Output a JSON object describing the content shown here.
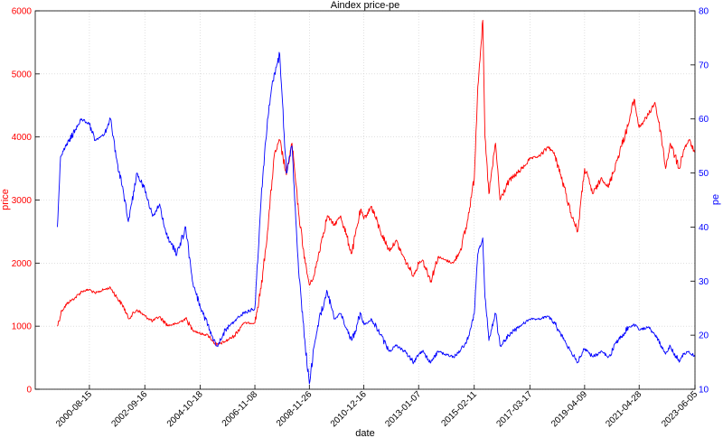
{
  "chart_data": {
    "type": "line",
    "title": "Aindex price-pe",
    "xlabel": "date",
    "ylabel_left": "price",
    "ylabel_right": "pe",
    "xlim": [
      "1998-08-01",
      "2023-06-05"
    ],
    "ylim_left": [
      0,
      6000
    ],
    "ylim_right": [
      10,
      80
    ],
    "x_ticks": [
      "2000-08-15",
      "2002-09-16",
      "2004-10-18",
      "2006-11-08",
      "2008-11-26",
      "2010-12-16",
      "2013-01-07",
      "2015-02-11",
      "2017-03-17",
      "2019-04-09",
      "2021-04-28",
      "2023-06-05"
    ],
    "y_ticks_left": [
      "0",
      "1000",
      "2000",
      "3000",
      "4000",
      "5000",
      "6000"
    ],
    "y_ticks_right": [
      "10",
      "20",
      "30",
      "40",
      "50",
      "60",
      "70",
      "80"
    ],
    "grid": true,
    "colors": {
      "price": "#ff0000",
      "pe": "#0000ff",
      "grid": "#cccccc"
    },
    "series": [
      {
        "axis": "left",
        "color": "#ff0000",
        "points": [
          [
            "1999-06-01",
            1000
          ],
          [
            "1999-08-01",
            1250
          ],
          [
            "1999-11-01",
            1380
          ],
          [
            "2000-02-01",
            1450
          ],
          [
            "2000-05-01",
            1550
          ],
          [
            "2000-08-15",
            1580
          ],
          [
            "2000-11-01",
            1520
          ],
          [
            "2001-03-01",
            1580
          ],
          [
            "2001-06-01",
            1610
          ],
          [
            "2001-09-01",
            1450
          ],
          [
            "2001-12-01",
            1300
          ],
          [
            "2002-02-01",
            1120
          ],
          [
            "2002-06-01",
            1260
          ],
          [
            "2002-09-16",
            1160
          ],
          [
            "2003-01-01",
            1080
          ],
          [
            "2003-04-01",
            1150
          ],
          [
            "2003-08-01",
            1010
          ],
          [
            "2003-12-01",
            1040
          ],
          [
            "2004-04-01",
            1120
          ],
          [
            "2004-07-01",
            950
          ],
          [
            "2004-10-18",
            880
          ],
          [
            "2005-02-01",
            860
          ],
          [
            "2005-06-01",
            700
          ],
          [
            "2005-10-01",
            760
          ],
          [
            "2006-02-01",
            850
          ],
          [
            "2006-06-01",
            1050
          ],
          [
            "2006-11-08",
            1050
          ],
          [
            "2007-02-01",
            1600
          ],
          [
            "2007-05-01",
            2500
          ],
          [
            "2007-08-01",
            3700
          ],
          [
            "2007-10-15",
            3950
          ],
          [
            "2008-01-15",
            3400
          ],
          [
            "2008-04-01",
            3900
          ],
          [
            "2008-07-01",
            2800
          ],
          [
            "2008-10-01",
            2000
          ],
          [
            "2008-11-26",
            1650
          ],
          [
            "2009-02-01",
            1800
          ],
          [
            "2009-05-01",
            2300
          ],
          [
            "2009-08-01",
            2750
          ],
          [
            "2009-11-01",
            2600
          ],
          [
            "2010-02-01",
            2750
          ],
          [
            "2010-07-01",
            2150
          ],
          [
            "2010-11-01",
            2850
          ],
          [
            "2010-12-16",
            2700
          ],
          [
            "2011-04-01",
            2900
          ],
          [
            "2011-08-01",
            2500
          ],
          [
            "2011-12-01",
            2200
          ],
          [
            "2012-03-01",
            2350
          ],
          [
            "2012-07-01",
            2050
          ],
          [
            "2012-11-01",
            1800
          ],
          [
            "2013-01-07",
            2000
          ],
          [
            "2013-03-01",
            2050
          ],
          [
            "2013-06-25",
            1720
          ],
          [
            "2013-10-01",
            2100
          ],
          [
            "2014-01-01",
            2050
          ],
          [
            "2014-05-01",
            2000
          ],
          [
            "2014-08-01",
            2200
          ],
          [
            "2014-11-01",
            2600
          ],
          [
            "2015-02-11",
            3350
          ],
          [
            "2015-04-01",
            4800
          ],
          [
            "2015-06-08",
            5850
          ],
          [
            "2015-07-08",
            4000
          ],
          [
            "2015-09-01",
            3100
          ],
          [
            "2015-12-01",
            3900
          ],
          [
            "2016-02-01",
            3000
          ],
          [
            "2016-06-01",
            3300
          ],
          [
            "2016-12-01",
            3500
          ],
          [
            "2017-03-17",
            3650
          ],
          [
            "2017-08-01",
            3700
          ],
          [
            "2017-12-01",
            3850
          ],
          [
            "2018-03-01",
            3700
          ],
          [
            "2018-07-01",
            3200
          ],
          [
            "2018-10-01",
            2800
          ],
          [
            "2019-01-04",
            2500
          ],
          [
            "2019-04-09",
            3500
          ],
          [
            "2019-08-01",
            3100
          ],
          [
            "2019-12-01",
            3350
          ],
          [
            "2020-03-01",
            3200
          ],
          [
            "2020-07-15",
            3700
          ],
          [
            "2020-12-01",
            4200
          ],
          [
            "2021-02-18",
            4600
          ],
          [
            "2021-04-28",
            4150
          ],
          [
            "2021-09-01",
            4350
          ],
          [
            "2021-12-01",
            4550
          ],
          [
            "2022-03-01",
            4000
          ],
          [
            "2022-04-27",
            3500
          ],
          [
            "2022-07-01",
            3900
          ],
          [
            "2022-10-31",
            3500
          ],
          [
            "2023-01-01",
            3800
          ],
          [
            "2023-03-15",
            3950
          ],
          [
            "2023-06-05",
            3750
          ]
        ]
      },
      {
        "axis": "right",
        "color": "#0000ff",
        "points": [
          [
            "1999-06-01",
            40
          ],
          [
            "1999-07-15",
            53
          ],
          [
            "1999-10-01",
            55
          ],
          [
            "2000-02-01",
            58
          ],
          [
            "2000-05-01",
            60
          ],
          [
            "2000-08-15",
            59
          ],
          [
            "2000-11-01",
            56
          ],
          [
            "2001-03-01",
            57
          ],
          [
            "2001-06-01",
            60
          ],
          [
            "2001-09-01",
            52
          ],
          [
            "2001-12-01",
            46
          ],
          [
            "2002-02-01",
            41
          ],
          [
            "2002-06-01",
            50
          ],
          [
            "2002-09-16",
            47
          ],
          [
            "2003-01-01",
            42
          ],
          [
            "2003-04-01",
            44
          ],
          [
            "2003-08-01",
            38
          ],
          [
            "2003-12-01",
            35
          ],
          [
            "2004-04-01",
            40
          ],
          [
            "2004-07-01",
            30
          ],
          [
            "2004-10-18",
            25
          ],
          [
            "2005-02-01",
            22
          ],
          [
            "2005-06-01",
            18
          ],
          [
            "2005-10-01",
            21
          ],
          [
            "2006-03-01",
            23
          ],
          [
            "2006-06-01",
            24
          ],
          [
            "2006-11-08",
            25
          ],
          [
            "2007-02-01",
            45
          ],
          [
            "2007-05-01",
            60
          ],
          [
            "2007-07-15",
            67
          ],
          [
            "2007-10-15",
            72
          ],
          [
            "2008-01-15",
            50
          ],
          [
            "2008-04-01",
            55
          ],
          [
            "2008-07-01",
            32
          ],
          [
            "2008-10-01",
            18
          ],
          [
            "2008-11-26",
            11
          ],
          [
            "2009-02-01",
            18
          ],
          [
            "2009-05-01",
            24
          ],
          [
            "2009-08-01",
            28
          ],
          [
            "2009-11-01",
            23
          ],
          [
            "2010-02-01",
            24
          ],
          [
            "2010-07-01",
            19
          ],
          [
            "2010-11-01",
            24
          ],
          [
            "2010-12-16",
            22
          ],
          [
            "2011-04-01",
            23
          ],
          [
            "2011-08-01",
            20
          ],
          [
            "2011-12-01",
            17
          ],
          [
            "2012-03-01",
            18
          ],
          [
            "2012-07-01",
            17
          ],
          [
            "2012-11-01",
            15
          ],
          [
            "2013-01-07",
            16.5
          ],
          [
            "2013-03-01",
            17
          ],
          [
            "2013-06-25",
            15
          ],
          [
            "2013-10-01",
            17
          ],
          [
            "2014-01-01",
            16.5
          ],
          [
            "2014-05-01",
            16
          ],
          [
            "2014-08-01",
            17
          ],
          [
            "2014-11-01",
            19
          ],
          [
            "2015-02-11",
            24
          ],
          [
            "2015-04-01",
            35
          ],
          [
            "2015-06-08",
            38
          ],
          [
            "2015-07-08",
            27
          ],
          [
            "2015-09-01",
            19
          ],
          [
            "2015-12-01",
            24
          ],
          [
            "2016-02-01",
            18
          ],
          [
            "2016-06-01",
            20
          ],
          [
            "2016-12-01",
            22
          ],
          [
            "2017-03-17",
            23
          ],
          [
            "2017-08-01",
            23
          ],
          [
            "2017-12-01",
            23.5
          ],
          [
            "2018-03-01",
            22
          ],
          [
            "2018-07-01",
            19
          ],
          [
            "2018-10-01",
            17
          ],
          [
            "2019-01-04",
            15
          ],
          [
            "2019-04-09",
            17.5
          ],
          [
            "2019-08-01",
            16
          ],
          [
            "2019-12-01",
            17
          ],
          [
            "2020-03-01",
            16
          ],
          [
            "2020-07-15",
            19
          ],
          [
            "2020-12-01",
            21.5
          ],
          [
            "2021-02-18",
            22
          ],
          [
            "2021-04-28",
            21
          ],
          [
            "2021-09-01",
            21.5
          ],
          [
            "2021-12-01",
            20
          ],
          [
            "2022-03-01",
            18
          ],
          [
            "2022-04-27",
            16.5
          ],
          [
            "2022-07-01",
            18
          ],
          [
            "2022-10-31",
            15
          ],
          [
            "2023-01-01",
            16.5
          ],
          [
            "2023-03-15",
            17
          ],
          [
            "2023-06-05",
            16
          ]
        ]
      }
    ]
  }
}
